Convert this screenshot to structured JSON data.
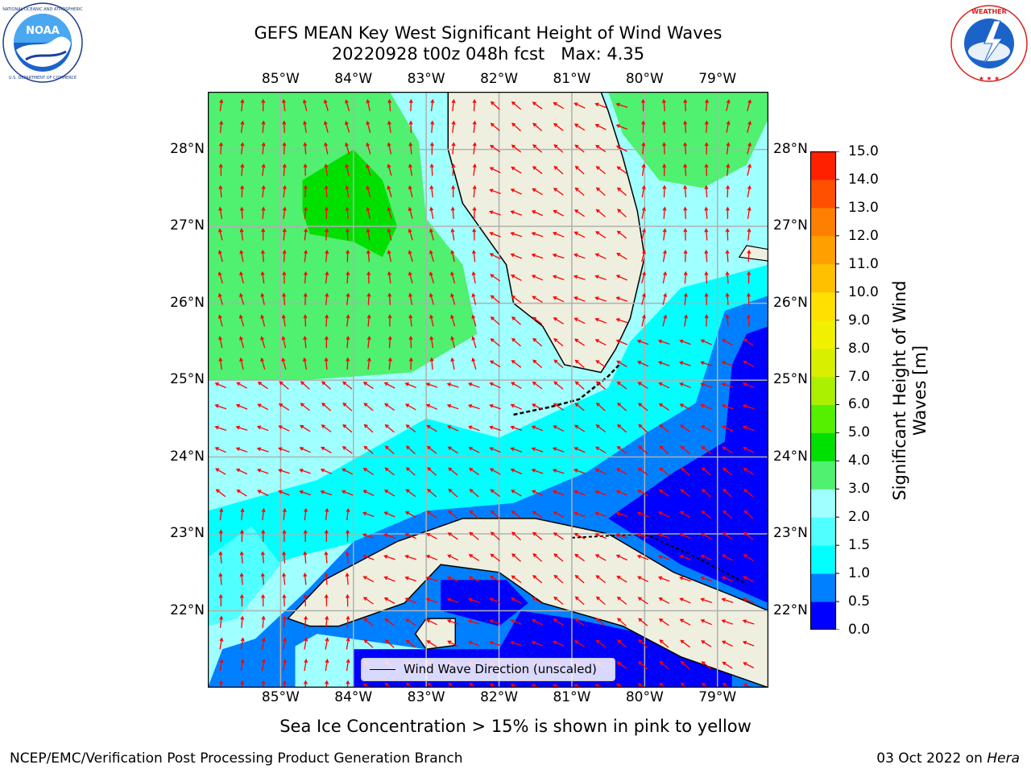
{
  "header": {
    "title_line1": "GEFS MEAN Key West Significant Height of Wind Waves",
    "title_line2": "20220928 t00z 048h fcst   Max: 4.35"
  },
  "logos": {
    "left": {
      "name": "noaa-logo",
      "text": "NOAA",
      "ring_text": "NATIONAL OCEANIC AND ATMOSPHERIC ADMINISTRATION · U.S. DEPARTMENT OF COMMERCE"
    },
    "right": {
      "name": "nws-logo",
      "ring_text": "NATIONAL WEATHER SERVICE"
    }
  },
  "map": {
    "lon_labels": [
      "85°W",
      "84°W",
      "83°W",
      "82°W",
      "81°W",
      "80°W",
      "79°W"
    ],
    "lat_labels": [
      "28°N",
      "27°N",
      "26°N",
      "25°N",
      "24°N",
      "23°N",
      "22°N"
    ],
    "lon_values": [
      -85,
      -84,
      -83,
      -82,
      -81,
      -80,
      -79
    ],
    "lat_values": [
      28,
      27,
      26,
      25,
      24,
      23,
      22
    ],
    "extent": {
      "lon_min": -86.0,
      "lon_max": -78.3,
      "lat_min": 21.0,
      "lat_max": 28.75
    },
    "legend_text": "Wind Wave Direction (unscaled)",
    "land_color": "#efefdf",
    "arrow_color": "#ff0000",
    "missing_color": "#ffffff"
  },
  "colorbar": {
    "title": "Significant Height of Wind Waves [m]",
    "tick_labels": [
      "15.0",
      "14.0",
      "13.0",
      "12.0",
      "11.0",
      "10.0",
      "9.0",
      "8.0",
      "7.0",
      "6.0",
      "5.0",
      "4.0",
      "3.0",
      "2.0",
      "1.5",
      "1.0",
      "0.5",
      "0.0"
    ],
    "levels": [
      0.0,
      0.5,
      1.0,
      1.5,
      2.0,
      3.0,
      4.0,
      5.0,
      6.0,
      7.0,
      8.0,
      9.0,
      10.0,
      11.0,
      12.0,
      13.0,
      14.0,
      15.0
    ],
    "colors": [
      "#0000ff",
      "#0080ff",
      "#00ffff",
      "#50ffff",
      "#a0ffff",
      "#50f070",
      "#00e000",
      "#55f000",
      "#aaf000",
      "#d8f000",
      "#f0f000",
      "#ffe000",
      "#ffc000",
      "#ffa000",
      "#ff8000",
      "#ff5000",
      "#ff2000"
    ]
  },
  "caption": "Sea Ice Concentration > 15% is shown in pink to yellow",
  "footer": {
    "left": "NCEP/EMC/Verification Post Processing Product Generation Branch",
    "right_prefix": "03 Oct 2022 on ",
    "right_host": "Hera"
  }
}
